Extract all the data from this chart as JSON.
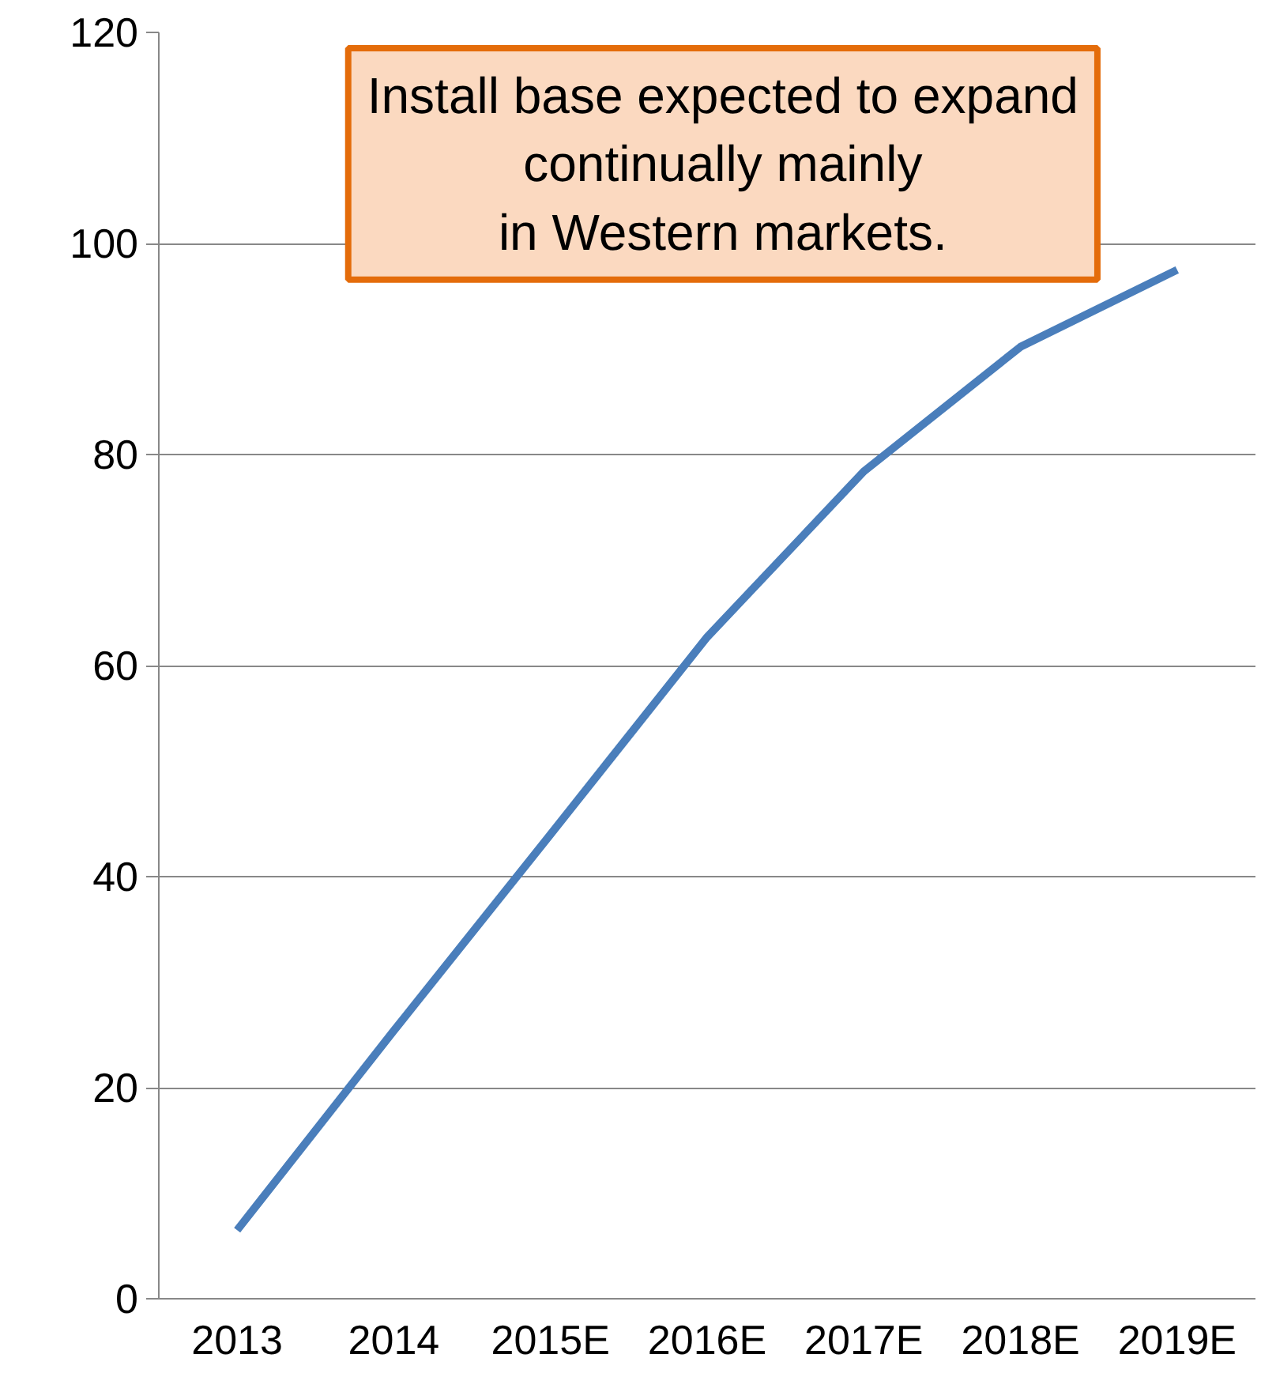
{
  "chart_data": {
    "type": "line",
    "categories": [
      "2013",
      "2014",
      "2015E",
      "2016E",
      "2017E",
      "2018E",
      "2019E"
    ],
    "series": [
      {
        "color": "#4a7ebb",
        "values": [
          6.5,
          25.4,
          44,
          62.7,
          78.4,
          90.2,
          97.5
        ]
      }
    ],
    "ylim": [
      0,
      120
    ],
    "yticks": [
      0,
      20,
      40,
      60,
      80,
      100,
      120
    ],
    "grid": "y",
    "marker": "none",
    "line_style": "solid",
    "annotations": [
      "Install base expected to expand\ncontinually mainly\nin Western markets."
    ]
  }
}
